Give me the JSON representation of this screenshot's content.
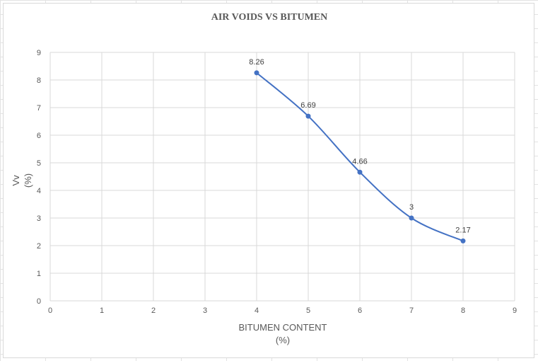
{
  "chart_data": {
    "type": "scatter",
    "title": "AIR VOIDS VS BITUMEN",
    "xlabel": [
      "BITUMEN CONTENT",
      "(%)"
    ],
    "ylabel": [
      "Vv",
      "(%)"
    ],
    "xlim": [
      0,
      9
    ],
    "ylim": [
      0,
      9
    ],
    "xticks": [
      "0",
      "1",
      "2",
      "3",
      "4",
      "5",
      "6",
      "7",
      "8",
      "9"
    ],
    "yticks": [
      "0",
      "1",
      "2",
      "3",
      "4",
      "5",
      "6",
      "7",
      "8",
      "9"
    ],
    "grid": true,
    "smooth_line": true,
    "series": [
      {
        "color": "#4472c4",
        "x": [
          4,
          5,
          6,
          7,
          8
        ],
        "y": [
          8.26,
          6.69,
          4.66,
          3,
          2.17
        ],
        "labels": [
          "8.26",
          "6.69",
          "4.66",
          "3",
          "2.17"
        ]
      }
    ]
  }
}
